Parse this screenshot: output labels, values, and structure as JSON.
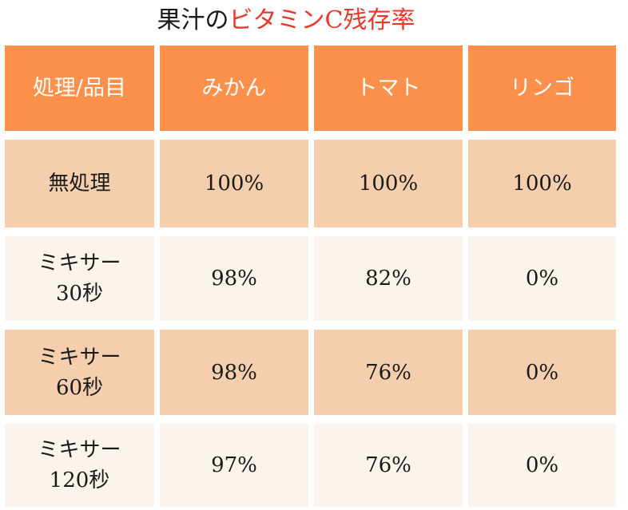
{
  "title": {
    "prefix": "果汁の",
    "highlight": "ビタミンC残存率"
  },
  "colors": {
    "header_bg": "#fd914c",
    "row_dark": "#f5cfad",
    "row_light": "#faf4ec",
    "title_accent": "#e8382b"
  },
  "table": {
    "headers": [
      "処理/品目",
      "みかん",
      "トマト",
      "リンゴ"
    ],
    "rows": [
      [
        "無処理",
        "100%",
        "100%",
        "100%"
      ],
      [
        "ミキサー\n30秒",
        "98%",
        "82%",
        "0%"
      ],
      [
        "ミキサー\n60秒",
        "98%",
        "76%",
        "0%"
      ],
      [
        "ミキサー\n120秒",
        "97%",
        "76%",
        "0%"
      ]
    ]
  }
}
